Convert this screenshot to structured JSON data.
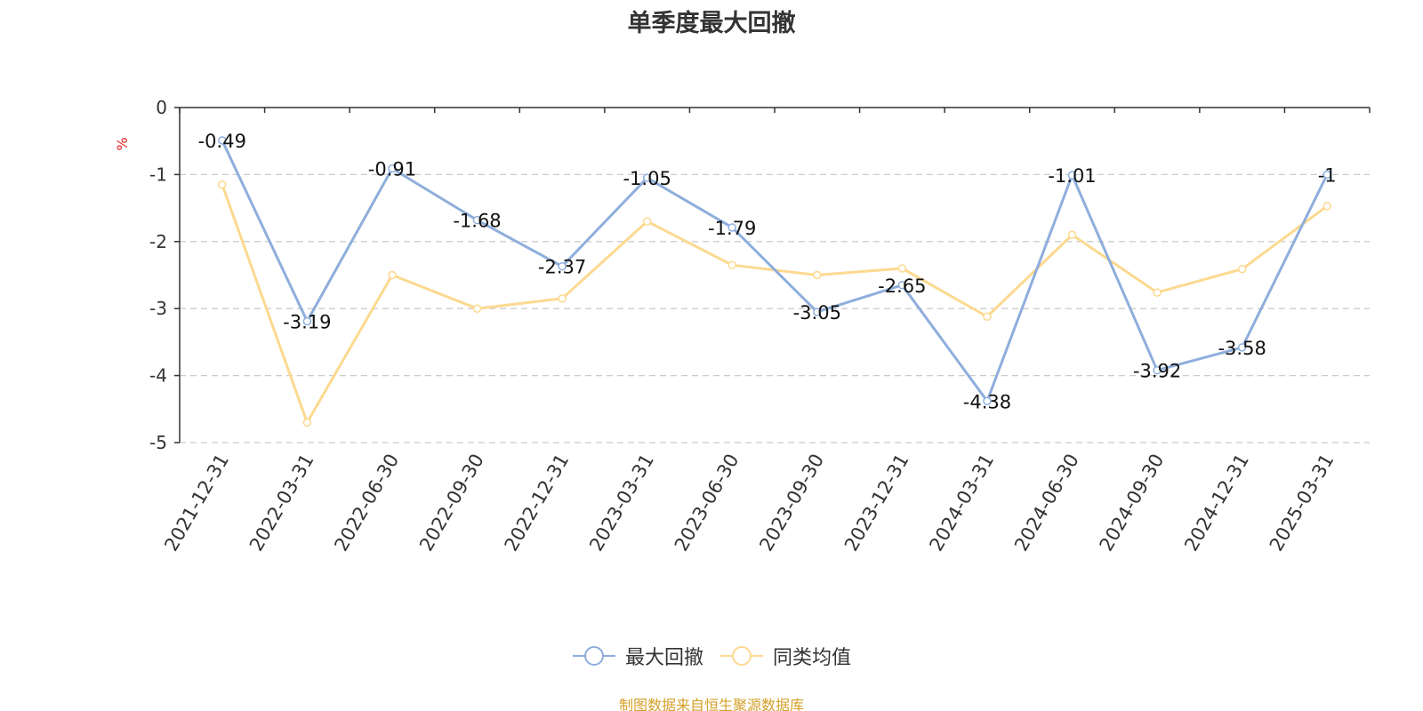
{
  "colors": {
    "series_1": "#8eaedc",
    "series_2": "#fcd98f",
    "axis": "#333333",
    "grid": "#cccccc",
    "unit": "#e02020",
    "footer": "#d4a02a"
  },
  "chart_data": {
    "type": "line",
    "title": "单季度最大回撤",
    "ylabel": "%",
    "xlabel": "",
    "ylim": [
      -5,
      0
    ],
    "yticks": [
      "0",
      "-1",
      "-2",
      "-3",
      "-4",
      "-5"
    ],
    "grid": true,
    "legend_position": "bottom-center",
    "categories": [
      "2021-12-31",
      "2022-03-31",
      "2022-06-30",
      "2022-09-30",
      "2022-12-31",
      "2023-03-31",
      "2023-06-30",
      "2023-09-30",
      "2023-12-31",
      "2024-03-31",
      "2024-06-30",
      "2024-09-30",
      "2024-12-31",
      "2025-03-31"
    ],
    "series": [
      {
        "name": "最大回撤",
        "values": [
          -0.49,
          -3.19,
          -0.91,
          -1.68,
          -2.37,
          -1.05,
          -1.79,
          -3.05,
          -2.65,
          -4.38,
          -1.01,
          -3.92,
          -3.58,
          -1
        ],
        "labels": [
          "-0.49",
          "-3.19",
          "-0.91",
          "-1.68",
          "-2.37",
          "-1.05",
          "-1.79",
          "-3.05",
          "-2.65",
          "-4.38",
          "-1.01",
          "-3.92",
          "-3.58",
          "-1"
        ]
      },
      {
        "name": "同类均值",
        "values": [
          -1.15,
          -4.7,
          -2.5,
          -3.0,
          -2.85,
          -1.7,
          -2.35,
          -2.5,
          -2.4,
          -3.12,
          -1.9,
          -2.76,
          -2.41,
          -1.47
        ]
      }
    ]
  },
  "footer": {
    "source": "制图数据来自恒生聚源数据库"
  }
}
